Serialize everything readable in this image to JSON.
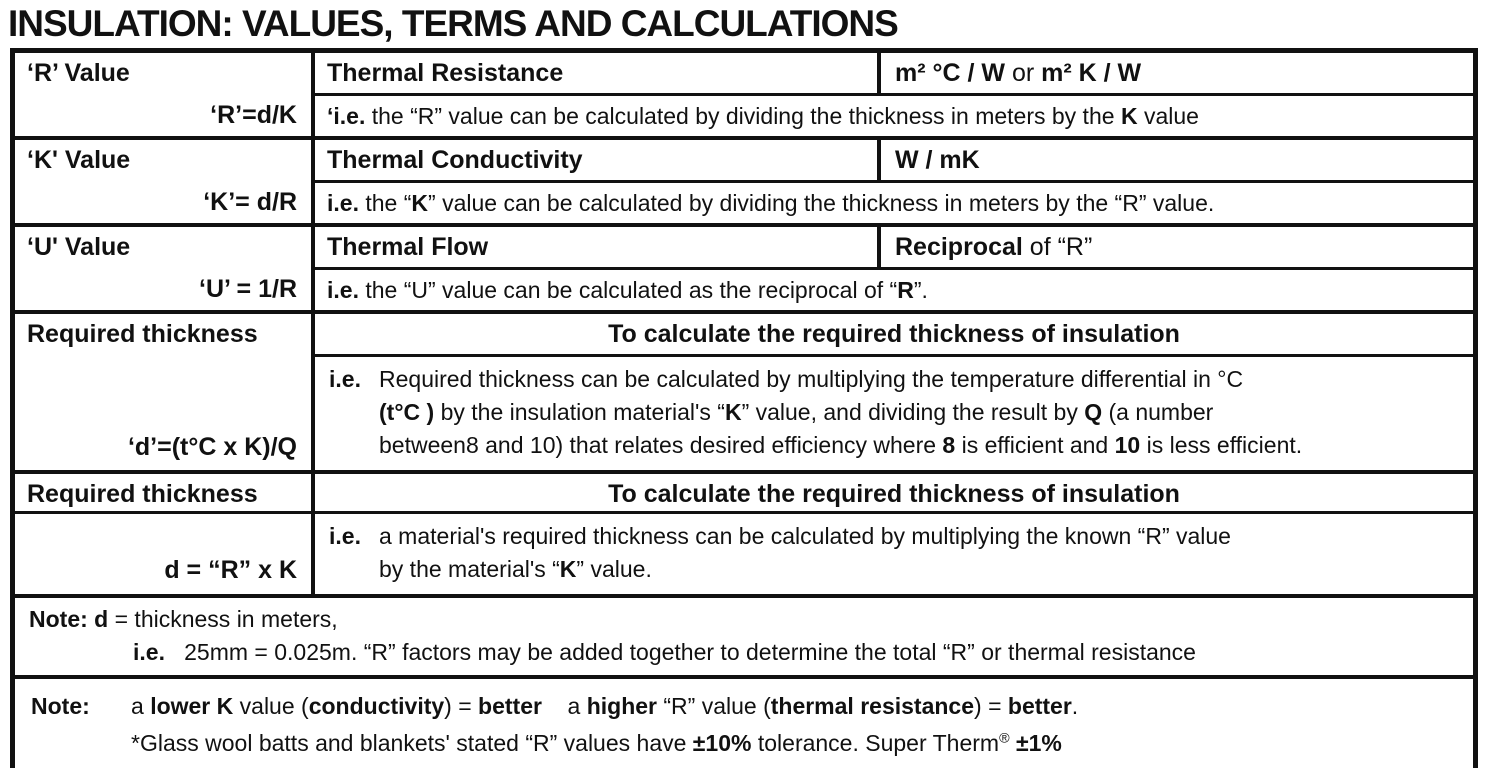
{
  "colors": {
    "text": "#111111",
    "background": "#ffffff",
    "border": "#111111"
  },
  "page_title": "INSULATION: VALUES, TERMS AND CALCULATIONS",
  "sections": {
    "r": {
      "term": "‘R’ Value",
      "formula": "‘R’=d/K",
      "definition": "Thermal Resistance",
      "units": [
        {
          "t": "m² °C / W",
          "b": true
        },
        {
          "t": " or ",
          "b": false
        },
        {
          "t": "m² K / W",
          "b": true
        }
      ],
      "note": [
        {
          "t": "‘i.e.",
          "b": true
        },
        {
          "t": " the “R” value can be calculated by dividing the thickness in meters by the ",
          "b": false
        },
        {
          "t": "K",
          "b": true
        },
        {
          "t": " value",
          "b": false
        }
      ]
    },
    "k": {
      "term": "‘K' Value",
      "formula": "‘K’= d/R",
      "definition": "Thermal Conductivity",
      "units": [
        {
          "t": "W / mK",
          "b": true
        }
      ],
      "note": [
        {
          "t": "i.e.",
          "b": true
        },
        {
          "t": " the “",
          "b": false
        },
        {
          "t": "K",
          "b": true
        },
        {
          "t": "” value can be calculated by dividing the thickness in meters by the “R” value.",
          "b": false
        }
      ]
    },
    "u": {
      "term": "‘U' Value",
      "formula": "‘U’ = 1/R",
      "definition": "Thermal Flow",
      "units": [
        {
          "t": "Reciprocal",
          "b": true
        },
        {
          "t": " of “R”",
          "b": false
        }
      ],
      "note": [
        {
          "t": "i.e.",
          "b": true
        },
        {
          "t": " the “U” value can be calculated as the reciprocal of “",
          "b": false
        },
        {
          "t": "R",
          "b": true
        },
        {
          "t": "”.",
          "b": false
        }
      ]
    },
    "d1": {
      "term": "Required thickness",
      "formula": "‘d’=(t°C x K)/Q",
      "header": "To calculate the required thickness of insulation",
      "ie": "i.e.",
      "lines": {
        "0": [
          {
            "t": "Required thickness can be calculated by multiplying the temperature differential in °C",
            "b": false
          }
        ],
        "1": [
          {
            "t": "(t°C )",
            "b": true
          },
          {
            "t": " by the insulation material's “",
            "b": false
          },
          {
            "t": "K",
            "b": true
          },
          {
            "t": "” value, and dividing the result by ",
            "b": false
          },
          {
            "t": "Q",
            "b": true
          },
          {
            "t": " (a number",
            "b": false
          }
        ],
        "2": [
          {
            "t": "between8 and 10) that relates desired efficiency where ",
            "b": false
          },
          {
            "t": "8",
            "b": true
          },
          {
            "t": " is efficient and ",
            "b": false
          },
          {
            "t": "10",
            "b": true
          },
          {
            "t": " is less efficient.",
            "b": false
          }
        ]
      }
    },
    "d2": {
      "term": "Required thickness",
      "formula": "d = “R” x K",
      "header": "To calculate the required thickness of insulation",
      "ie": "i.e.",
      "lines": {
        "0": [
          {
            "t": "a material's required thickness can be calculated by multiplying the known “R” value",
            "b": false
          }
        ],
        "1": [
          {
            "t": "by the material's “",
            "b": false
          },
          {
            "t": "K",
            "b": true
          },
          {
            "t": "” value.",
            "b": false
          }
        ]
      }
    },
    "note1": {
      "line1": [
        {
          "t": "Note: d",
          "b": true
        },
        {
          "t": " = thickness in meters,",
          "b": false
        }
      ],
      "line2": [
        {
          "t": "i.e.",
          "b": true
        },
        {
          "t": "   25mm = 0.025m. “R” factors may be added together to determine the total “R” or thermal resistance",
          "b": false
        }
      ]
    },
    "note2": {
      "label": "Note:",
      "line1": [
        {
          "t": "a ",
          "b": false
        },
        {
          "t": "lower K",
          "b": true
        },
        {
          "t": " value (",
          "b": false
        },
        {
          "t": "conductivity",
          "b": true
        },
        {
          "t": ") = ",
          "b": false
        },
        {
          "t": "better",
          "b": true
        },
        {
          "t": "    a ",
          "b": false
        },
        {
          "t": "higher",
          "b": true
        },
        {
          "t": " “R” value (",
          "b": false
        },
        {
          "t": "thermal resistance",
          "b": true
        },
        {
          "t": ") = ",
          "b": false
        },
        {
          "t": "better",
          "b": true
        },
        {
          "t": ".",
          "b": false
        }
      ],
      "line2": [
        {
          "t": "*Glass wool batts and blankets' stated “R” values have ",
          "b": false
        },
        {
          "t": "±10%",
          "b": true
        },
        {
          "t": " tolerance. Super Therm",
          "b": false
        },
        {
          "t": "®",
          "b": false,
          "sup": true
        },
        {
          "t": " ",
          "b": false
        },
        {
          "t": "±1%",
          "b": true
        }
      ]
    }
  }
}
